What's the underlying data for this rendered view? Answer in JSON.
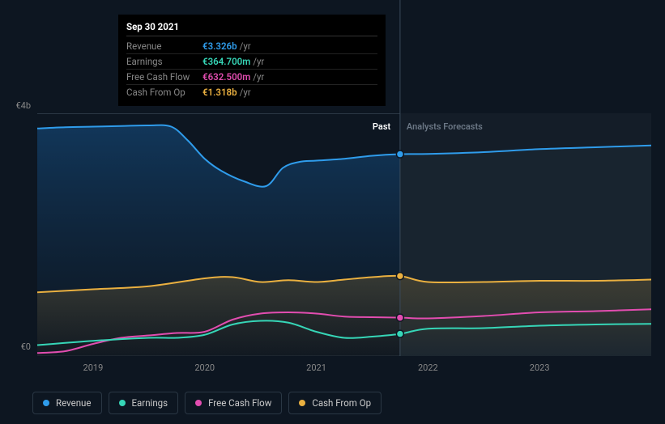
{
  "chart": {
    "type": "line-area",
    "background_color": "#0d1621",
    "plot_past_bg": "#102235",
    "plot_future_bg": "#16202c",
    "grid_color": "#2a3744",
    "ylim": [
      0,
      4
    ],
    "y_ticks": [
      {
        "v": 4,
        "label": "€4b"
      },
      {
        "v": 0,
        "label": "€0"
      }
    ],
    "x_years": [
      2019,
      2020,
      2021,
      2022,
      2023
    ],
    "x_range": [
      2018.5,
      2024.0
    ],
    "divider_x": 2021.75,
    "section_labels": {
      "past": "Past",
      "future": "Analysts Forecasts",
      "past_color": "#ffffff",
      "future_color": "#6b7785"
    },
    "series": [
      {
        "name": "Revenue",
        "color": "#2f9ceb",
        "fill": true,
        "values": [
          [
            2018.5,
            3.75
          ],
          [
            2018.75,
            3.77
          ],
          [
            2019,
            3.78
          ],
          [
            2019.25,
            3.79
          ],
          [
            2019.5,
            3.8
          ],
          [
            2019.7,
            3.78
          ],
          [
            2019.85,
            3.55
          ],
          [
            2020.0,
            3.25
          ],
          [
            2020.15,
            3.05
          ],
          [
            2020.35,
            2.88
          ],
          [
            2020.55,
            2.8
          ],
          [
            2020.7,
            3.1
          ],
          [
            2020.85,
            3.2
          ],
          [
            2021.0,
            3.22
          ],
          [
            2021.25,
            3.25
          ],
          [
            2021.5,
            3.3
          ],
          [
            2021.75,
            3.326
          ],
          [
            2022.0,
            3.33
          ],
          [
            2022.5,
            3.36
          ],
          [
            2023.0,
            3.41
          ],
          [
            2023.5,
            3.44
          ],
          [
            2024.0,
            3.47
          ]
        ]
      },
      {
        "name": "Cash From Op",
        "color": "#eab040",
        "fill": true,
        "fill_opacity": 0.15,
        "values": [
          [
            2018.5,
            1.05
          ],
          [
            2019,
            1.1
          ],
          [
            2019.5,
            1.15
          ],
          [
            2020,
            1.28
          ],
          [
            2020.25,
            1.3
          ],
          [
            2020.5,
            1.22
          ],
          [
            2020.75,
            1.25
          ],
          [
            2021,
            1.22
          ],
          [
            2021.25,
            1.26
          ],
          [
            2021.5,
            1.3
          ],
          [
            2021.75,
            1.318
          ],
          [
            2022,
            1.22
          ],
          [
            2022.5,
            1.22
          ],
          [
            2023,
            1.24
          ],
          [
            2023.5,
            1.24
          ],
          [
            2024,
            1.26
          ]
        ]
      },
      {
        "name": "Free Cash Flow",
        "color": "#e24db0",
        "fill": false,
        "values": [
          [
            2018.5,
            0.05
          ],
          [
            2018.75,
            0.08
          ],
          [
            2019,
            0.2
          ],
          [
            2019.25,
            0.3
          ],
          [
            2019.5,
            0.34
          ],
          [
            2019.75,
            0.38
          ],
          [
            2020,
            0.4
          ],
          [
            2020.25,
            0.6
          ],
          [
            2020.5,
            0.7
          ],
          [
            2020.75,
            0.72
          ],
          [
            2021,
            0.7
          ],
          [
            2021.25,
            0.65
          ],
          [
            2021.5,
            0.64
          ],
          [
            2021.75,
            0.6325
          ],
          [
            2022,
            0.62
          ],
          [
            2022.5,
            0.66
          ],
          [
            2023,
            0.72
          ],
          [
            2023.5,
            0.74
          ],
          [
            2024,
            0.77
          ]
        ]
      },
      {
        "name": "Earnings",
        "color": "#36d6b7",
        "fill": false,
        "values": [
          [
            2018.5,
            0.18
          ],
          [
            2019,
            0.25
          ],
          [
            2019.5,
            0.3
          ],
          [
            2019.75,
            0.3
          ],
          [
            2020,
            0.35
          ],
          [
            2020.25,
            0.52
          ],
          [
            2020.5,
            0.58
          ],
          [
            2020.75,
            0.55
          ],
          [
            2021,
            0.4
          ],
          [
            2021.25,
            0.3
          ],
          [
            2021.5,
            0.32
          ],
          [
            2021.75,
            0.3647
          ],
          [
            2022,
            0.45
          ],
          [
            2022.5,
            0.46
          ],
          [
            2023,
            0.5
          ],
          [
            2023.5,
            0.52
          ],
          [
            2024,
            0.53
          ]
        ]
      }
    ],
    "markers_x": 2021.75,
    "line_width": 2
  },
  "tooltip": {
    "date": "Sep 30 2021",
    "unit": "/yr",
    "rows": [
      {
        "label": "Revenue",
        "value": "€3.326b",
        "color": "#2f9ceb"
      },
      {
        "label": "Earnings",
        "value": "€364.700m",
        "color": "#36d6b7"
      },
      {
        "label": "Free Cash Flow",
        "value": "€632.500m",
        "color": "#e24db0"
      },
      {
        "label": "Cash From Op",
        "value": "€1.318b",
        "color": "#eab040"
      }
    ]
  },
  "legend": [
    {
      "label": "Revenue",
      "color": "#2f9ceb"
    },
    {
      "label": "Earnings",
      "color": "#36d6b7"
    },
    {
      "label": "Free Cash Flow",
      "color": "#e24db0"
    },
    {
      "label": "Cash From Op",
      "color": "#eab040"
    }
  ]
}
